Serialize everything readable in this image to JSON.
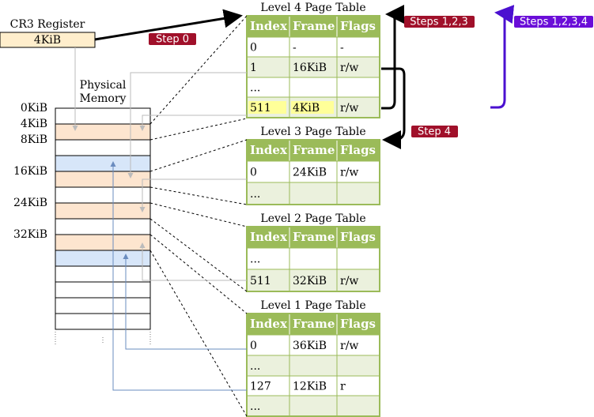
{
  "cr3": {
    "label": "CR3 Register",
    "value": "4KiB"
  },
  "memory": {
    "title_lines": [
      "Physical",
      "Memory"
    ],
    "addresses": [
      "0KiB",
      "4KiB",
      "8KiB",
      "16KiB",
      "24KiB",
      "32KiB"
    ]
  },
  "steps": [
    "Step 0",
    "Steps 1,2,3",
    "Step 4",
    "Steps 1,2,3,4"
  ],
  "tables": [
    {
      "title": "Level 4 Page Table",
      "header": [
        "Index",
        "Frame",
        "Flags"
      ],
      "rows": [
        [
          "0",
          "-",
          "-"
        ],
        [
          "1",
          "16KiB",
          "r/w"
        ],
        [
          "..."
        ],
        [
          "511",
          "4KiB",
          "r/w"
        ]
      ]
    },
    {
      "title": "Level 3 Page Table",
      "header": [
        "Index",
        "Frame",
        "Flags"
      ],
      "rows": [
        [
          "0",
          "24KiB",
          "r/w"
        ],
        [
          "..."
        ]
      ]
    },
    {
      "title": "Level 2 Page Table",
      "header": [
        "Index",
        "Frame",
        "Flags"
      ],
      "rows": [
        [
          "..."
        ],
        [
          "511",
          "32KiB",
          "r/w"
        ]
      ]
    },
    {
      "title": "Level 1 Page Table",
      "header": [
        "Index",
        "Frame",
        "Flags"
      ],
      "rows": [
        [
          "0",
          "36KiB",
          "r/w"
        ],
        [
          "..."
        ],
        [
          "127",
          "12KiB",
          "r"
        ],
        [
          "..."
        ]
      ]
    }
  ]
}
